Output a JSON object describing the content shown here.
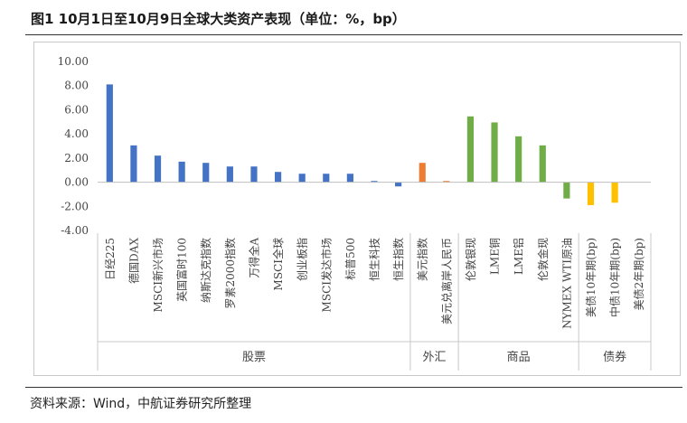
{
  "figure": {
    "title": "图1  10月1日至10月9日全球大类资产表现（单位：%，bp）",
    "source": "资料来源：Wind，中航证券研究所整理"
  },
  "colors": {
    "股票": "#4472C4",
    "外汇": "#ED7D31",
    "商品": "#70AD47",
    "债券": "#FFC000"
  },
  "chart_data": {
    "type": "bar",
    "title": "",
    "xlabel": "",
    "ylabel": "",
    "ylim": [
      -4,
      10
    ],
    "yticks": [
      "10.00",
      "8.00",
      "6.00",
      "4.00",
      "2.00",
      "0.00",
      "-2.00",
      "-4.00"
    ],
    "grid": false,
    "legend": "none",
    "categories": [
      "日经225",
      "德国DAX",
      "MSCI新兴市场",
      "英国富时100",
      "纳斯达克指数",
      "罗素2000指数",
      "万得全A",
      "MSCI全球",
      "创业板指",
      "MSCI发达市场",
      "标普500",
      "恒生科技",
      "恒生指数",
      "美元指数",
      "美元兑离岸人民币",
      "伦敦银现",
      "LME铜",
      "LME铝",
      "伦敦金现",
      "NYMEX WTI原油",
      "美债10年期(bp)",
      "中债10年期(bp)",
      "美债2年期(bp)"
    ],
    "values": [
      8.1,
      3.05,
      2.2,
      1.7,
      1.6,
      1.3,
      1.3,
      0.85,
      0.7,
      0.7,
      0.7,
      0.1,
      -0.35,
      1.6,
      0.1,
      5.45,
      4.95,
      3.8,
      3.05,
      -1.35,
      -1.9,
      -1.7,
      0.0
    ],
    "groups": [
      {
        "name": "股票",
        "count": 13
      },
      {
        "name": "外汇",
        "count": 2
      },
      {
        "name": "商品",
        "count": 5
      },
      {
        "name": "债券",
        "count": 3
      }
    ]
  }
}
